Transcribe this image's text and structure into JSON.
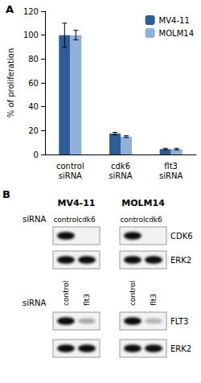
{
  "chart_data": {
    "type": "bar",
    "panel_label": "A",
    "categories": [
      "control\nsiRNA",
      "cdk6\nsiRNA",
      "flt3\nsiRNA"
    ],
    "y_label": "% of proliferation",
    "series": [
      {
        "name": "MV4-11",
        "color": "#2d5d96",
        "values": [
          100,
          17.5,
          4.5
        ],
        "errors": [
          10,
          1,
          0.7
        ]
      },
      {
        "name": "MOLM14",
        "color": "#8fb0da",
        "values": [
          100,
          15,
          4.5
        ],
        "errors": [
          4,
          0.7,
          0.7
        ]
      }
    ],
    "ylim": [
      0,
      120
    ],
    "yticks": [
      0,
      20,
      40,
      60,
      80,
      100,
      120
    ],
    "grid": false,
    "legend": "upper right"
  },
  "blots": {
    "panel_label": "B",
    "row_label": "siRNA",
    "cell_lines": [
      "MV4-11",
      "MOLM14"
    ],
    "groups": [
      {
        "lanes": [
          "control",
          "cdk6"
        ],
        "rows": [
          {
            "label": "CDK6",
            "signal": [
              [
                1,
                0
              ],
              [
                1,
                0
              ]
            ]
          },
          {
            "label": "ERK2",
            "signal": [
              [
                1,
                1
              ],
              [
                1,
                1
              ]
            ]
          }
        ]
      },
      {
        "lanes": [
          "control",
          "flt3"
        ],
        "rows": [
          {
            "label": "FLT3",
            "signal": [
              [
                1,
                0.3
              ],
              [
                1,
                0.25
              ]
            ]
          },
          {
            "label": "ERK2",
            "signal": [
              [
                1,
                1
              ],
              [
                1,
                1
              ]
            ]
          }
        ]
      }
    ]
  }
}
